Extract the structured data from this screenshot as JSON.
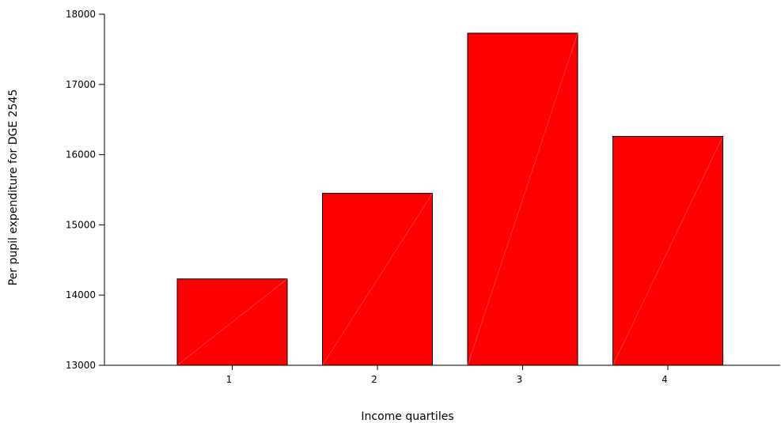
{
  "chart_data": {
    "type": "bar",
    "categories": [
      "1",
      "2",
      "3",
      "4"
    ],
    "values": [
      14230,
      15450,
      17730,
      16260
    ],
    "xlabel": "Income quartiles",
    "ylabel": "Per pupil expenditure for DGE 2545",
    "ylim": [
      13000,
      18000
    ],
    "yticks": [
      13000,
      14000,
      15000,
      16000,
      17000,
      18000
    ],
    "grid": false,
    "legend": "none",
    "colors": {
      "bar_fill": "#ff0000",
      "bar_stroke": "#000000",
      "axis": "#000000"
    }
  }
}
